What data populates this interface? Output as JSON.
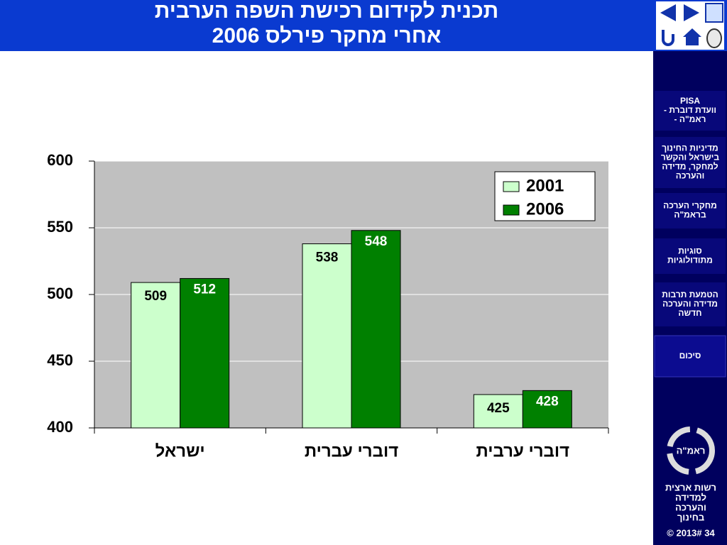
{
  "header": {
    "title": [
      "תכנית לקידום רכישת השפה הערבית",
      "אחרי מחקר פירלס 2006"
    ]
  },
  "chart_data": {
    "type": "bar",
    "categories": [
      "ישראל",
      "דוברי עברית",
      "דוברי ערבית"
    ],
    "series": [
      {
        "name": "2001",
        "color": "#ccffcc",
        "values": [
          509,
          538,
          425
        ]
      },
      {
        "name": "2006",
        "color": "#008000",
        "values": [
          512,
          548,
          428
        ]
      }
    ],
    "ylim": [
      400,
      600
    ],
    "yticks": [
      400,
      450,
      500,
      550,
      600
    ],
    "grid": true,
    "legend": "top-right"
  },
  "sidebar": {
    "items": [
      [
        "PISA",
        "- וועדת דוברת",
        "- ראמ\"ה"
      ],
      [
        "מדיניות החינוך",
        "בישראל והקשר",
        "למחקר, מדידה",
        "והערכה"
      ],
      [
        "מחקרי הערכה",
        "בראמ\"ה"
      ],
      [
        "סוגיות",
        "מתודולוגיות"
      ],
      [
        "הטמעת תרבות",
        "מדידה והערכה",
        "חדשה"
      ],
      [
        "סיכום"
      ]
    ],
    "logo": "ראמ\"ה",
    "org": [
      "רשות ארצית",
      "למדידה",
      "והערכה",
      "בחינוך"
    ],
    "footer": "© 2013# 34"
  }
}
